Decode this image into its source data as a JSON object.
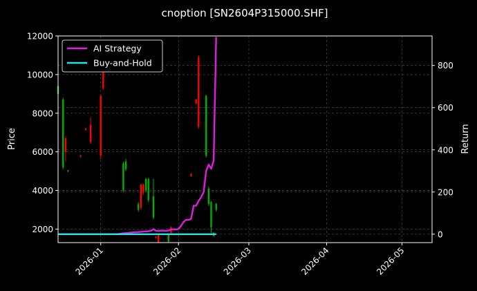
{
  "chart_data": {
    "type": "line",
    "title": "cnoption [SN2604P315000.SHF]",
    "xlabel": "",
    "ylabel": "Price",
    "y2label": "Return",
    "x_ticks": [
      "2026-01",
      "2026-02",
      "2026-03",
      "2026-04",
      "2026-05"
    ],
    "xlim": [
      "2025-12-15",
      "2026-05-13"
    ],
    "ylim": [
      1300,
      12000
    ],
    "y_ticks": [
      2000,
      4000,
      6000,
      8000,
      10000,
      12000
    ],
    "y2lim": [
      -40,
      940
    ],
    "y2_ticks": [
      0,
      200,
      400,
      600,
      800
    ],
    "grid": true,
    "legend_position": "top-left",
    "colors": {
      "background": "#000000",
      "up_candle": "#ff0000",
      "down_candle": "#00b000",
      "ai_strategy": "#e01ee0",
      "buy_and_hold": "#22e5e5",
      "grid": "#555555"
    },
    "series": [
      {
        "name": "AI Strategy",
        "axis": "right",
        "points": [
          [
            "2025-12-15",
            0
          ],
          [
            "2025-12-20",
            0
          ],
          [
            "2025-12-25",
            0
          ],
          [
            "2025-12-30",
            0
          ],
          [
            "2026-01-05",
            0
          ],
          [
            "2026-01-08",
            1
          ],
          [
            "2026-01-10",
            4
          ],
          [
            "2026-01-12",
            6
          ],
          [
            "2026-01-14",
            9
          ],
          [
            "2026-01-16",
            10
          ],
          [
            "2026-01-18",
            12
          ],
          [
            "2026-01-20",
            14
          ],
          [
            "2026-01-21",
            16
          ],
          [
            "2026-01-22",
            24
          ],
          [
            "2026-01-23",
            16
          ],
          [
            "2026-01-24",
            15
          ],
          [
            "2026-01-25",
            17
          ],
          [
            "2026-01-27",
            16
          ],
          [
            "2026-01-28",
            17
          ],
          [
            "2026-01-29",
            22
          ],
          [
            "2026-01-30",
            24
          ],
          [
            "2026-01-31",
            22
          ],
          [
            "2026-02-01",
            25
          ],
          [
            "2026-02-02",
            40
          ],
          [
            "2026-02-03",
            58
          ],
          [
            "2026-02-04",
            68
          ],
          [
            "2026-02-05",
            68
          ],
          [
            "2026-02-06",
            72
          ],
          [
            "2026-02-07",
            135
          ],
          [
            "2026-02-08",
            135
          ],
          [
            "2026-02-09",
            158
          ],
          [
            "2026-02-10",
            175
          ],
          [
            "2026-02-11",
            200
          ],
          [
            "2026-02-12",
            300
          ],
          [
            "2026-02-13",
            330
          ],
          [
            "2026-02-14",
            310
          ],
          [
            "2026-02-15",
            350
          ],
          [
            "2026-02-16",
            935
          ]
        ]
      },
      {
        "name": "Buy-and-Hold",
        "axis": "right",
        "points": [
          [
            "2025-12-15",
            0
          ],
          [
            "2026-02-16",
            0
          ]
        ]
      }
    ],
    "candles": [
      {
        "date": "2025-12-15",
        "open": 9400,
        "close": 9000,
        "high": 9800,
        "low": 8900
      },
      {
        "date": "2025-12-17",
        "open": 8700,
        "close": 5200,
        "high": 8800,
        "low": 5100
      },
      {
        "date": "2025-12-18",
        "open": 6000,
        "close": 6700,
        "high": 6800,
        "low": 5500
      },
      {
        "date": "2025-12-19",
        "open": 5050,
        "close": 5000,
        "high": 5050,
        "low": 4950
      },
      {
        "date": "2025-12-24",
        "open": 5750,
        "close": 5800,
        "high": 5850,
        "low": 5700
      },
      {
        "date": "2025-12-26",
        "open": 7150,
        "close": 7200,
        "high": 7250,
        "low": 7100
      },
      {
        "date": "2025-12-28",
        "open": 6500,
        "close": 7400,
        "high": 7800,
        "low": 6400
      },
      {
        "date": "2026-01-01",
        "open": 5800,
        "close": 8900,
        "high": 8950,
        "low": 5600
      },
      {
        "date": "2026-01-02",
        "open": 9300,
        "close": 10500,
        "high": 10600,
        "low": 9200
      },
      {
        "date": "2026-01-10",
        "open": 5400,
        "close": 4000,
        "high": 5500,
        "low": 3900
      },
      {
        "date": "2026-01-11",
        "open": 5500,
        "close": 5100,
        "high": 5650,
        "low": 5000
      },
      {
        "date": "2026-01-16",
        "open": 3300,
        "close": 3000,
        "high": 3400,
        "low": 2900
      },
      {
        "date": "2026-01-17",
        "open": 3100,
        "close": 4300,
        "high": 4350,
        "low": 3000
      },
      {
        "date": "2026-01-18",
        "open": 3900,
        "close": 4300,
        "high": 4350,
        "low": 3800
      },
      {
        "date": "2026-01-19",
        "open": 4600,
        "close": 4000,
        "high": 4650,
        "low": 3900
      },
      {
        "date": "2026-01-20",
        "open": 4600,
        "close": 3500,
        "high": 4650,
        "low": 3400
      },
      {
        "date": "2026-01-22",
        "open": 3700,
        "close": 2600,
        "high": 4600,
        "low": 2500
      },
      {
        "date": "2026-01-23",
        "open": 1550,
        "close": 1600,
        "high": 1650,
        "low": 1500
      },
      {
        "date": "2026-01-24",
        "open": 1300,
        "close": 1700,
        "high": 1750,
        "low": 1300
      },
      {
        "date": "2026-01-28",
        "open": 1700,
        "close": 1350,
        "high": 1750,
        "low": 1300
      },
      {
        "date": "2026-01-29",
        "open": 1800,
        "close": 2100,
        "high": 2150,
        "low": 1750
      },
      {
        "date": "2026-02-06",
        "open": 4750,
        "close": 4850,
        "high": 4900,
        "low": 4700
      },
      {
        "date": "2026-02-08",
        "open": 8500,
        "close": 8700,
        "high": 8750,
        "low": 8450
      },
      {
        "date": "2026-02-09",
        "open": 7300,
        "close": 10900,
        "high": 11000,
        "low": 7200
      },
      {
        "date": "2026-02-12",
        "open": 8900,
        "close": 5800,
        "high": 8950,
        "low": 5700
      },
      {
        "date": "2026-02-13",
        "open": 4100,
        "close": 3300,
        "high": 4200,
        "low": 3200
      },
      {
        "date": "2026-02-14",
        "open": 3400,
        "close": 2100,
        "high": 3450,
        "low": 1800
      },
      {
        "date": "2026-02-15",
        "open": 1800,
        "close": 1650,
        "high": 1850,
        "low": 1600
      },
      {
        "date": "2026-02-16",
        "open": 3300,
        "close": 3000,
        "high": 3350,
        "low": 2900
      }
    ]
  }
}
